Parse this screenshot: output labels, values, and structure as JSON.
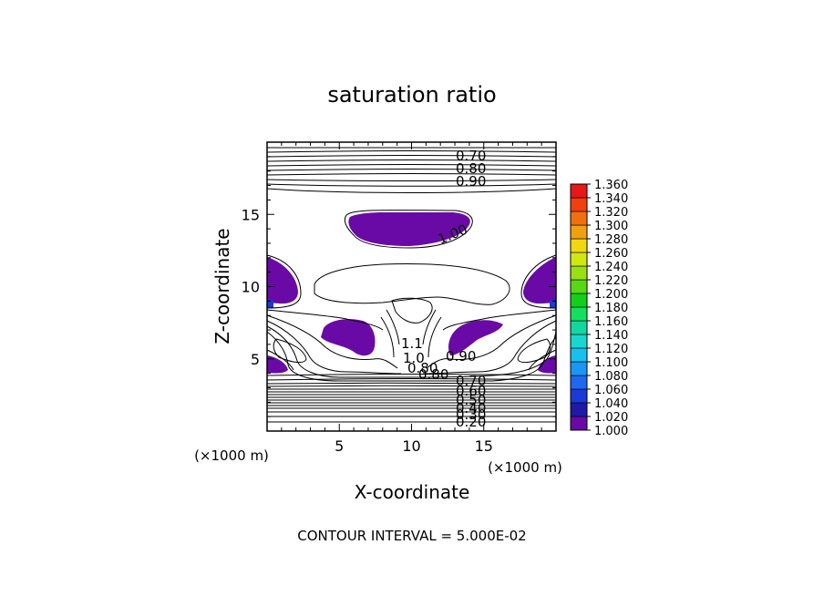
{
  "chart_data": {
    "type": "heatmap",
    "title": "saturation ratio",
    "xlabel": "X-coordinate",
    "ylabel": "Z-coordinate",
    "x_unit": "(×1000 m)",
    "y_unit": "(×1000 m)",
    "xlim": [
      0,
      20
    ],
    "ylim": [
      0,
      20
    ],
    "x_ticks": [
      5,
      10,
      15
    ],
    "y_ticks": [
      5,
      10,
      15
    ],
    "contour_labels_upper": [
      "0.70",
      "0.80",
      "0.90",
      "1.00"
    ],
    "contour_labels_middle": [
      "1.1",
      "1.0",
      "0.90",
      "0.80",
      "0.80"
    ],
    "contour_labels_lower": [
      "0.70",
      "0.60",
      "0.50",
      "0.40",
      "0.30",
      "0.20"
    ],
    "colorbar_levels": [
      "1.000",
      "1.020",
      "1.040",
      "1.060",
      "1.080",
      "1.100",
      "1.120",
      "1.140",
      "1.160",
      "1.180",
      "1.200",
      "1.220",
      "1.240",
      "1.260",
      "1.280",
      "1.300",
      "1.320",
      "1.340",
      "1.360"
    ],
    "colorbar_colors": [
      "#6a0aa6",
      "#1e1aa8",
      "#1b3ad6",
      "#1e68f0",
      "#1a96f5",
      "#18c0f0",
      "#16d8d0",
      "#12d8a0",
      "#14e060",
      "#12d018",
      "#58d814",
      "#98e010",
      "#d0e810",
      "#f0d810",
      "#f0a010",
      "#f07010",
      "#f04010",
      "#e81818",
      "#f07070"
    ],
    "fill_color": "#6a0aa6",
    "footer": "CONTOUR INTERVAL = 5.000E-02"
  }
}
